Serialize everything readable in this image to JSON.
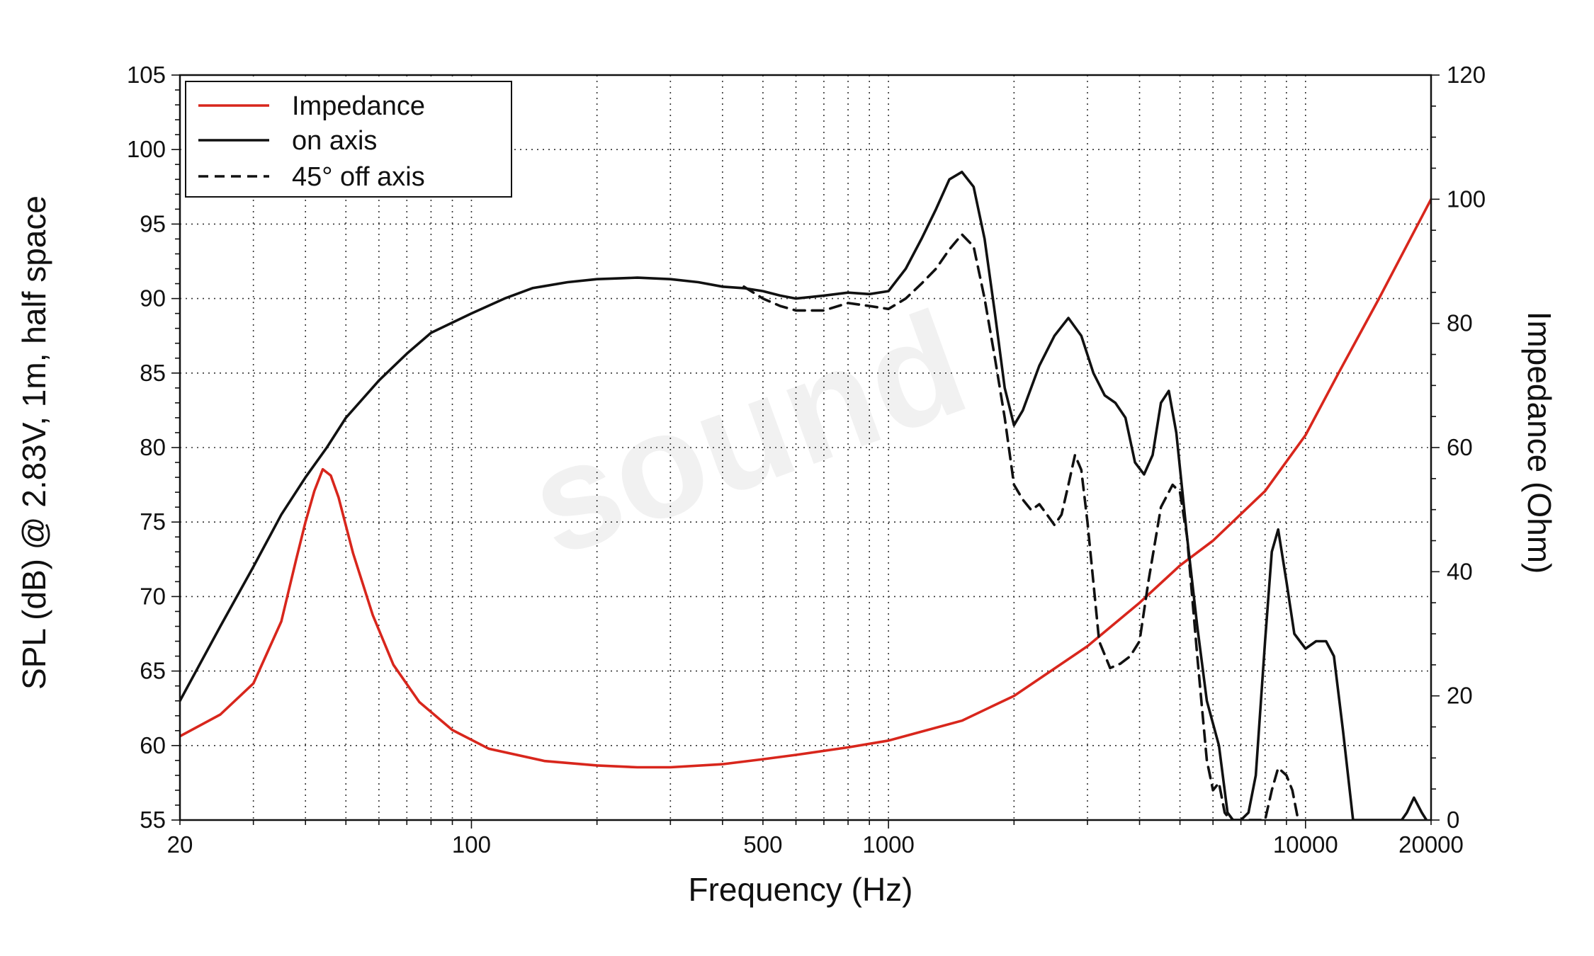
{
  "chart_data": {
    "type": "line",
    "xlabel": "Frequency (Hz)",
    "ylabel_left": "SPL (dB) @ 2.83V, 1m, half space",
    "ylabel_right": "Impedance (Ohm)",
    "x_scale": "log",
    "xlim": [
      20,
      20000
    ],
    "ylim_left": [
      55,
      105
    ],
    "ylim_right": [
      0,
      120
    ],
    "x_tick_labels": [
      "20",
      "100",
      "500",
      "1000",
      "10000",
      "20000"
    ],
    "y_left_tick_labels": [
      "55",
      "60",
      "65",
      "70",
      "75",
      "80",
      "85",
      "90",
      "95",
      "100",
      "105"
    ],
    "y_right_tick_labels": [
      "0",
      "20",
      "40",
      "60",
      "80",
      "100",
      "120"
    ],
    "grid": "dotted",
    "legend_position": "top-left",
    "watermark": "sound",
    "series": [
      {
        "name": "Impedance",
        "axis": "right",
        "color": "#d8261c",
        "style": "solid",
        "points": [
          [
            20,
            13.5
          ],
          [
            25,
            17
          ],
          [
            30,
            22
          ],
          [
            35,
            32
          ],
          [
            38,
            42
          ],
          [
            40,
            48
          ],
          [
            42,
            53
          ],
          [
            44,
            56.5
          ],
          [
            46,
            55.5
          ],
          [
            48,
            52
          ],
          [
            52,
            43
          ],
          [
            58,
            33
          ],
          [
            65,
            25
          ],
          [
            75,
            19
          ],
          [
            90,
            14.5
          ],
          [
            110,
            11.5
          ],
          [
            150,
            9.5
          ],
          [
            200,
            8.8
          ],
          [
            250,
            8.5
          ],
          [
            300,
            8.5
          ],
          [
            400,
            9
          ],
          [
            500,
            9.8
          ],
          [
            600,
            10.5
          ],
          [
            800,
            11.7
          ],
          [
            1000,
            12.8
          ],
          [
            1500,
            16
          ],
          [
            2000,
            20
          ],
          [
            3000,
            28
          ],
          [
            4000,
            35
          ],
          [
            5000,
            41
          ],
          [
            6000,
            45
          ],
          [
            8000,
            53
          ],
          [
            10000,
            62
          ],
          [
            12000,
            72
          ],
          [
            15000,
            84
          ],
          [
            20000,
            100
          ]
        ]
      },
      {
        "name": "on axis",
        "axis": "left",
        "color": "#111111",
        "style": "solid",
        "points": [
          [
            20,
            63
          ],
          [
            25,
            68
          ],
          [
            30,
            72
          ],
          [
            35,
            75.5
          ],
          [
            40,
            78
          ],
          [
            45,
            80
          ],
          [
            50,
            82
          ],
          [
            60,
            84.5
          ],
          [
            70,
            86.3
          ],
          [
            80,
            87.7
          ],
          [
            100,
            89
          ],
          [
            120,
            90
          ],
          [
            140,
            90.7
          ],
          [
            170,
            91.1
          ],
          [
            200,
            91.3
          ],
          [
            250,
            91.4
          ],
          [
            300,
            91.3
          ],
          [
            350,
            91.1
          ],
          [
            400,
            90.8
          ],
          [
            450,
            90.7
          ],
          [
            500,
            90.5
          ],
          [
            550,
            90.2
          ],
          [
            600,
            90
          ],
          [
            700,
            90.2
          ],
          [
            800,
            90.4
          ],
          [
            900,
            90.3
          ],
          [
            1000,
            90.5
          ],
          [
            1100,
            92
          ],
          [
            1200,
            94
          ],
          [
            1300,
            96
          ],
          [
            1400,
            98
          ],
          [
            1500,
            98.5
          ],
          [
            1600,
            97.5
          ],
          [
            1700,
            94
          ],
          [
            1800,
            89
          ],
          [
            1900,
            84
          ],
          [
            2000,
            81.5
          ],
          [
            2100,
            82.5
          ],
          [
            2300,
            85.5
          ],
          [
            2500,
            87.5
          ],
          [
            2700,
            88.7
          ],
          [
            2900,
            87.5
          ],
          [
            3100,
            85
          ],
          [
            3300,
            83.5
          ],
          [
            3500,
            83
          ],
          [
            3700,
            82
          ],
          [
            3900,
            79
          ],
          [
            4100,
            78.2
          ],
          [
            4300,
            79.5
          ],
          [
            4500,
            83
          ],
          [
            4700,
            83.8
          ],
          [
            4900,
            81
          ],
          [
            5200,
            74
          ],
          [
            5500,
            68
          ],
          [
            5800,
            63
          ],
          [
            6200,
            60
          ],
          [
            6500,
            55.5
          ],
          [
            6700,
            55
          ],
          [
            7000,
            55
          ],
          [
            7300,
            55.5
          ],
          [
            7600,
            58
          ],
          [
            8000,
            67
          ],
          [
            8300,
            73
          ],
          [
            8600,
            74.5
          ],
          [
            9000,
            71
          ],
          [
            9400,
            67.5
          ],
          [
            10000,
            66.5
          ],
          [
            10600,
            67
          ],
          [
            11200,
            67
          ],
          [
            11700,
            66
          ],
          [
            12300,
            61
          ],
          [
            13000,
            55
          ],
          [
            17000,
            55
          ],
          [
            17500,
            55.5
          ],
          [
            18200,
            56.5
          ],
          [
            19000,
            55.5
          ],
          [
            19500,
            55
          ]
        ]
      },
      {
        "name": "45° off axis",
        "axis": "left",
        "color": "#111111",
        "style": "dashed",
        "points": [
          [
            450,
            90.8
          ],
          [
            500,
            90
          ],
          [
            550,
            89.5
          ],
          [
            600,
            89.2
          ],
          [
            700,
            89.2
          ],
          [
            800,
            89.7
          ],
          [
            900,
            89.5
          ],
          [
            1000,
            89.3
          ],
          [
            1100,
            90
          ],
          [
            1200,
            91
          ],
          [
            1300,
            92
          ],
          [
            1400,
            93.3
          ],
          [
            1500,
            94.3
          ],
          [
            1600,
            93.5
          ],
          [
            1700,
            90
          ],
          [
            1800,
            86
          ],
          [
            1900,
            82
          ],
          [
            2000,
            77.5
          ],
          [
            2100,
            76.5
          ],
          [
            2200,
            75.8
          ],
          [
            2300,
            76.2
          ],
          [
            2400,
            75.5
          ],
          [
            2500,
            74.8
          ],
          [
            2600,
            75.5
          ],
          [
            2700,
            77.5
          ],
          [
            2800,
            79.5
          ],
          [
            2900,
            78.5
          ],
          [
            3000,
            75
          ],
          [
            3200,
            67
          ],
          [
            3400,
            65.2
          ],
          [
            3600,
            65.5
          ],
          [
            3800,
            66
          ],
          [
            4000,
            67
          ],
          [
            4200,
            71
          ],
          [
            4500,
            76
          ],
          [
            4800,
            77.5
          ],
          [
            5000,
            77
          ],
          [
            5200,
            74
          ],
          [
            5500,
            66
          ],
          [
            5800,
            59
          ],
          [
            6000,
            57
          ],
          [
            6200,
            57.5
          ],
          [
            6400,
            55.5
          ],
          [
            6600,
            55
          ],
          [
            8000,
            55
          ],
          [
            8300,
            57
          ],
          [
            8600,
            58.5
          ],
          [
            9000,
            58
          ],
          [
            9300,
            57
          ],
          [
            9600,
            55
          ]
        ]
      }
    ]
  }
}
